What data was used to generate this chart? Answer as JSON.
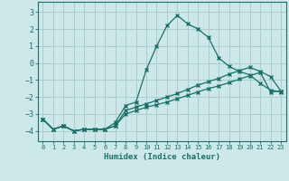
{
  "xlabel": "Humidex (Indice chaleur)",
  "background_color": "#cce8e8",
  "grid_color": "#aacccc",
  "line_color": "#1a7068",
  "xlim": [
    -0.5,
    23.5
  ],
  "ylim": [
    -4.6,
    3.6
  ],
  "yticks": [
    -4,
    -3,
    -2,
    -1,
    0,
    1,
    2,
    3
  ],
  "xticks": [
    0,
    1,
    2,
    3,
    4,
    5,
    6,
    7,
    8,
    9,
    10,
    11,
    12,
    13,
    14,
    15,
    16,
    17,
    18,
    19,
    20,
    21,
    22,
    23
  ],
  "line1_x": [
    0,
    1,
    2,
    3,
    4,
    5,
    6,
    7,
    8,
    9,
    10,
    11,
    12,
    13,
    14,
    15,
    16,
    17,
    18,
    19,
    20,
    21,
    22,
    23
  ],
  "line1_y": [
    -3.3,
    -3.9,
    -3.7,
    -4.0,
    -3.9,
    -3.9,
    -3.9,
    -3.5,
    -2.5,
    -2.3,
    -0.4,
    1.0,
    2.2,
    2.8,
    2.3,
    2.0,
    1.5,
    0.3,
    -0.2,
    -0.5,
    -0.7,
    -1.2,
    -1.6,
    -1.7
  ],
  "line2_x": [
    0,
    1,
    2,
    3,
    4,
    5,
    6,
    7,
    8,
    9,
    10,
    11,
    12,
    13,
    14,
    15,
    16,
    17,
    18,
    19,
    20,
    21,
    22,
    23
  ],
  "line2_y": [
    -3.3,
    -3.9,
    -3.7,
    -4.0,
    -3.9,
    -3.9,
    -3.9,
    -3.7,
    -2.8,
    -2.6,
    -2.4,
    -2.2,
    -2.0,
    -1.8,
    -1.55,
    -1.3,
    -1.1,
    -0.9,
    -0.65,
    -0.45,
    -0.25,
    -0.5,
    -0.8,
    -1.65
  ],
  "line3_x": [
    0,
    1,
    2,
    3,
    4,
    5,
    6,
    7,
    8,
    9,
    10,
    11,
    12,
    13,
    14,
    15,
    16,
    17,
    18,
    19,
    20,
    21,
    22,
    23
  ],
  "line3_y": [
    -3.3,
    -3.9,
    -3.7,
    -4.0,
    -3.9,
    -3.9,
    -3.9,
    -3.7,
    -3.0,
    -2.8,
    -2.6,
    -2.45,
    -2.3,
    -2.1,
    -1.9,
    -1.7,
    -1.5,
    -1.35,
    -1.15,
    -0.95,
    -0.75,
    -0.55,
    -1.7,
    -1.65
  ]
}
